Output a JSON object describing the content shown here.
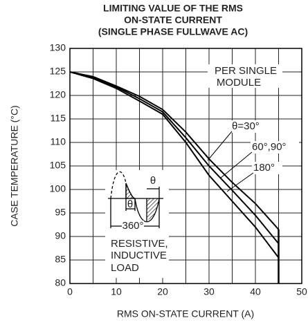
{
  "chart_data": {
    "type": "line",
    "title": [
      "LIMITING VALUE OF THE RMS",
      "ON-STATE CURRENT",
      "(SINGLE PHASE FULLWAVE AC)"
    ],
    "x_label": "RMS ON-STATE CURRENT (A)",
    "y_label": "CASE TEMPERATURE (°C)",
    "x": [
      0,
      5,
      10,
      15,
      20,
      25,
      30,
      35,
      40,
      45
    ],
    "series": [
      {
        "name": "θ=30°",
        "color": "#000000",
        "values": [
          125,
          124,
          122,
          119.8,
          117,
          112.2,
          106.5,
          101.5,
          97,
          91.5
        ]
      },
      {
        "name": "60°,90°",
        "color": "#000000",
        "values": [
          125,
          123.8,
          121.8,
          119.3,
          116.5,
          111,
          105,
          99.8,
          94.5,
          88.5
        ]
      },
      {
        "name": "180°",
        "color": "#000000",
        "values": [
          125,
          123.6,
          121.5,
          118.8,
          116,
          110,
          103,
          97.5,
          92,
          85.5
        ]
      }
    ],
    "xlim": [
      0,
      50
    ],
    "ylim": [
      80,
      130
    ],
    "xticks": [
      0,
      10,
      20,
      30,
      40,
      50
    ],
    "x_minor_ticks": [
      5,
      15,
      25,
      35,
      45
    ],
    "yticks": [
      80,
      85,
      90,
      95,
      100,
      105,
      110,
      115,
      120,
      125,
      130
    ],
    "grid": true,
    "annotations": {
      "module": [
        "PER SINGLE",
        "MODULE"
      ],
      "load": [
        "RESISTIVE,",
        "INDUCTIVE",
        "LOAD"
      ],
      "theta": "θ",
      "period": "360°"
    }
  }
}
